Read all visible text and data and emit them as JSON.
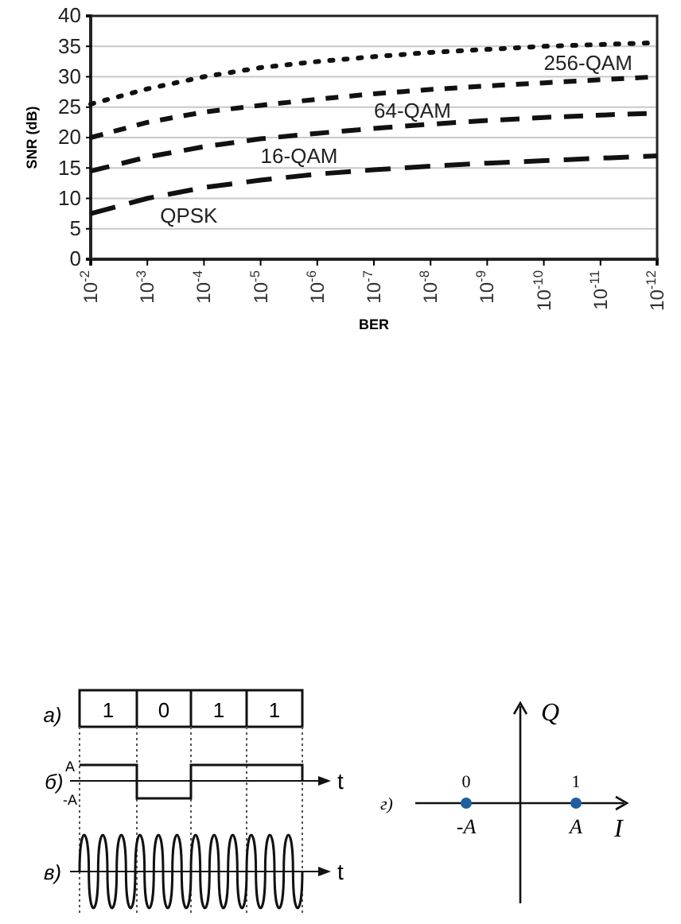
{
  "chart_data": {
    "type": "line",
    "xlabel": "BER",
    "ylabel": "SNR (dB)",
    "x": [
      0.01,
      0.001,
      0.0001,
      1e-05,
      1e-06,
      1e-07,
      1e-08,
      1e-09,
      1e-10,
      1e-11,
      1e-12
    ],
    "log": "x",
    "series": [
      {
        "name": "256-QAM",
        "color": "#111111",
        "line_style": "dotted",
        "values": [
          25.5,
          28,
          30,
          31.5,
          32.5,
          33.3,
          34,
          34.5,
          35,
          35.3,
          35.6
        ]
      },
      {
        "name": "64-QAM",
        "color": "#111111",
        "line_style": "dashed",
        "values": [
          20,
          22.5,
          24.2,
          25.3,
          26.3,
          27.2,
          27.9,
          28.5,
          29,
          29.5,
          30
        ]
      },
      {
        "name": "16-QAM",
        "color": "#111111",
        "line_style": "dashed",
        "values": [
          14.5,
          16.8,
          18.5,
          19.8,
          20.7,
          21.5,
          22.2,
          22.8,
          23.3,
          23.7,
          24
        ]
      },
      {
        "name": "QPSK",
        "color": "#111111",
        "line_style": "dashed",
        "values": [
          7.5,
          10,
          11.8,
          13,
          14,
          14.7,
          15.3,
          15.8,
          16.2,
          16.6,
          17
        ]
      }
    ],
    "xlim": [
      0.01,
      1e-12
    ],
    "xticks": [
      {
        "value": 0.01,
        "label": "10$^{-2}$"
      },
      {
        "value": 0.001,
        "label": "10$^{-3}$"
      },
      {
        "value": 0.0001,
        "label": "10$^{-4}$"
      },
      {
        "value": 1e-05,
        "label": "10$^{-5}$"
      },
      {
        "value": 1e-06,
        "label": "10$^{-6}$"
      },
      {
        "value": 1e-07,
        "label": "10$^{-7}$"
      },
      {
        "value": 1e-08,
        "label": "10$^{-8}$"
      },
      {
        "value": 1e-09,
        "label": "10$^{-9}$"
      },
      {
        "value": 1e-10,
        "label": "10$^{-10}$"
      },
      {
        "value": 1e-11,
        "label": "10$^{-11}$"
      },
      {
        "value": 1e-12,
        "label": "10$^{-12}$"
      }
    ],
    "ylim": [
      0,
      40
    ],
    "yticks": [
      0,
      5,
      10,
      15,
      20,
      25,
      30,
      35,
      40
    ],
    "grid": "y",
    "marker": "none",
    "annotations": [
      "а)",
      "1",
      "0",
      "1",
      "1",
      "A",
      "б)",
      "-A",
      "t",
      "в)",
      "t",
      "0",
      "1",
      "г)",
      "-A",
      "A",
      "Q",
      "I"
    ]
  }
}
